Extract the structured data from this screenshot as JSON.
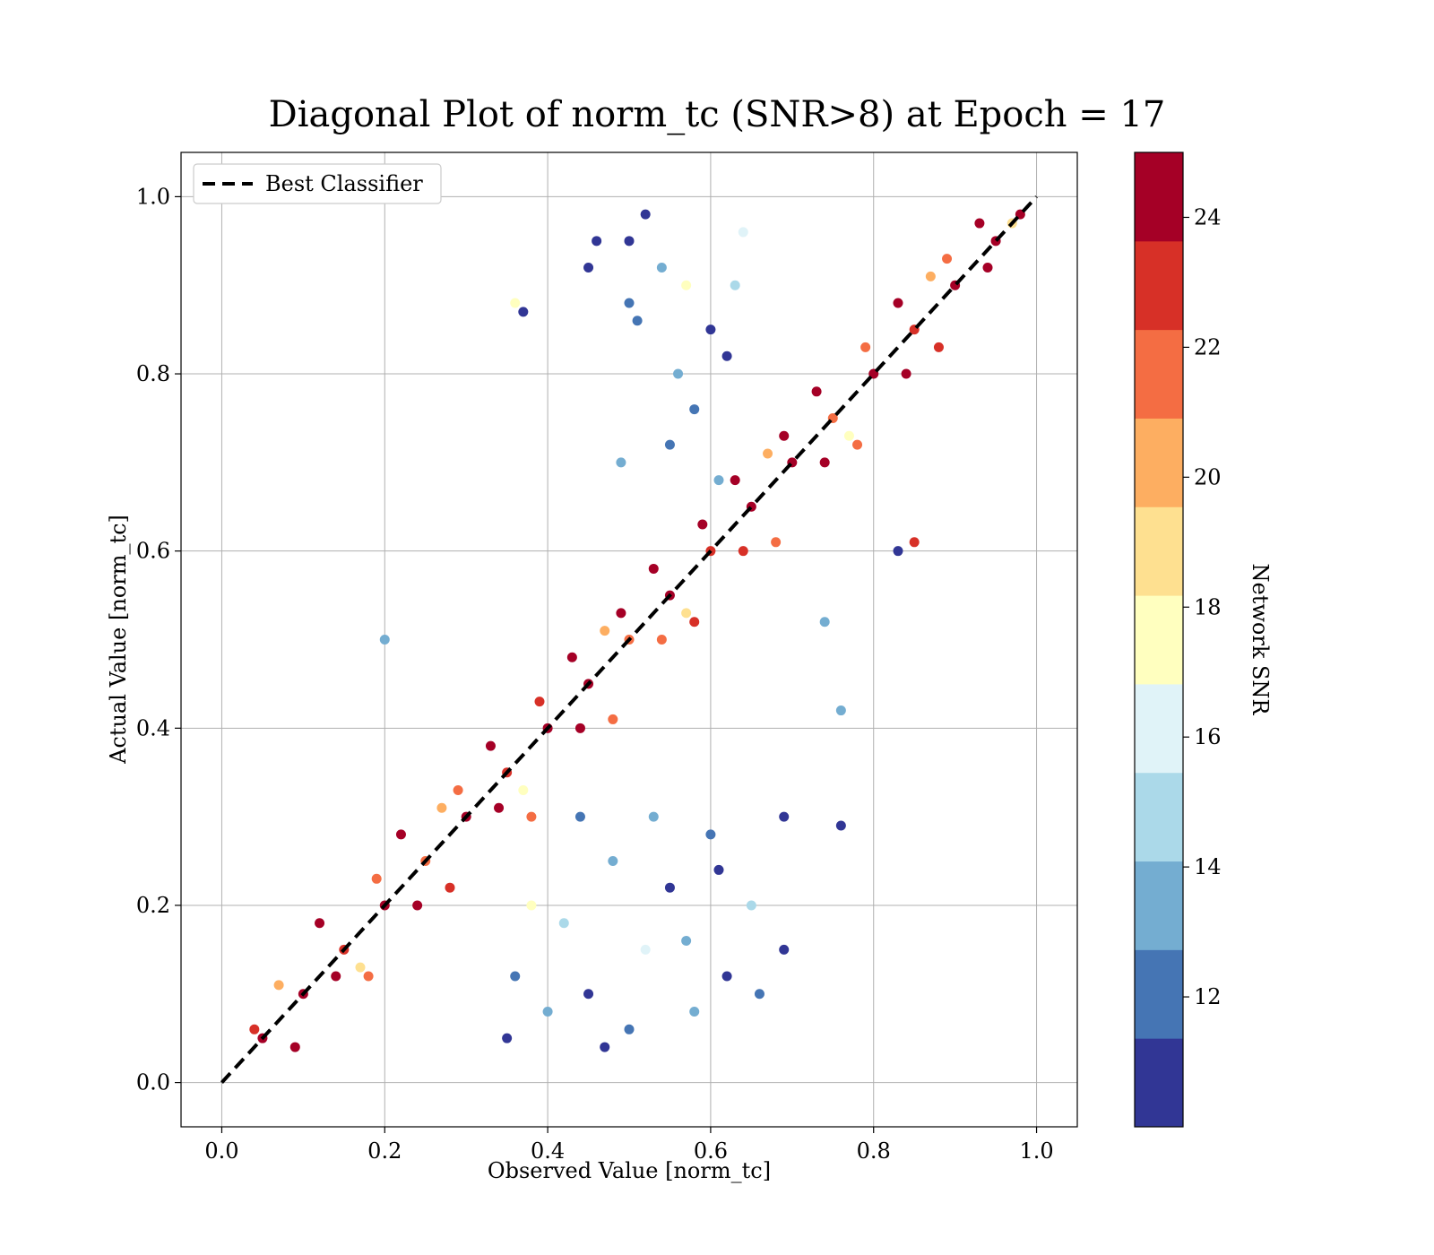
{
  "chart_data": {
    "type": "scatter",
    "title": "Diagonal Plot of norm_tc (SNR>8) at Epoch = 17",
    "xlabel": "Observed Value [norm_tc]",
    "ylabel": "Actual Value [norm_tc]",
    "xlim": [
      -0.05,
      1.05
    ],
    "ylim": [
      -0.05,
      1.05
    ],
    "xticks": [
      0.0,
      0.2,
      0.4,
      0.6,
      0.8,
      1.0
    ],
    "yticks": [
      0.0,
      0.2,
      0.4,
      0.6,
      0.8,
      1.0
    ],
    "xtick_labels": [
      "0.0",
      "0.2",
      "0.4",
      "0.6",
      "0.8",
      "1.0"
    ],
    "ytick_labels": [
      "0.0",
      "0.2",
      "0.4",
      "0.6",
      "0.8",
      "1.0"
    ],
    "grid": true,
    "legend": {
      "placement": "top-left",
      "entries": [
        {
          "label": "Best Classifier",
          "style": "dashed",
          "color": "#000000"
        }
      ]
    },
    "reference_line": {
      "name": "Best Classifier",
      "x": [
        0.0,
        1.0
      ],
      "y": [
        0.0,
        1.0
      ]
    },
    "colorbar": {
      "label": "Network SNR",
      "range": [
        10,
        25
      ],
      "ticks": [
        12,
        14,
        16,
        18,
        20,
        22,
        24
      ],
      "tick_labels": [
        "12",
        "14",
        "16",
        "18",
        "20",
        "22",
        "24"
      ],
      "colors": [
        "#313695",
        "#4575b4",
        "#74add1",
        "#abd9e9",
        "#e0f3f8",
        "#ffffbf",
        "#fee090",
        "#fdae61",
        "#f46d43",
        "#d73027",
        "#a50026"
      ]
    },
    "points": {
      "x": [
        0.05,
        0.1,
        0.15,
        0.2,
        0.25,
        0.3,
        0.35,
        0.4,
        0.45,
        0.5,
        0.55,
        0.6,
        0.65,
        0.7,
        0.75,
        0.8,
        0.85,
        0.9,
        0.95,
        0.98,
        0.12,
        0.18,
        0.22,
        0.28,
        0.33,
        0.38,
        0.43,
        0.48,
        0.53,
        0.58,
        0.63,
        0.68,
        0.73,
        0.78,
        0.83,
        0.88,
        0.93,
        0.04,
        0.09,
        0.14,
        0.19,
        0.24,
        0.29,
        0.34,
        0.39,
        0.44,
        0.49,
        0.54,
        0.59,
        0.64,
        0.69,
        0.74,
        0.79,
        0.84,
        0.89,
        0.94,
        0.07,
        0.17,
        0.27,
        0.37,
        0.47,
        0.57,
        0.67,
        0.77,
        0.87,
        0.97,
        0.35,
        0.36,
        0.4,
        0.42,
        0.45,
        0.48,
        0.5,
        0.52,
        0.55,
        0.58,
        0.6,
        0.62,
        0.65,
        0.38,
        0.44,
        0.47,
        0.53,
        0.57,
        0.61,
        0.66,
        0.46,
        0.5,
        0.54,
        0.56,
        0.6,
        0.63,
        0.55,
        0.52,
        0.49,
        0.58,
        0.62,
        0.64,
        0.51,
        0.57,
        0.61,
        0.2,
        0.36,
        0.37,
        0.45,
        0.5,
        0.74,
        0.76,
        0.76,
        0.83,
        0.85,
        0.69,
        0.69
      ],
      "y": [
        0.05,
        0.1,
        0.15,
        0.2,
        0.25,
        0.3,
        0.35,
        0.4,
        0.45,
        0.5,
        0.55,
        0.6,
        0.65,
        0.7,
        0.75,
        0.8,
        0.85,
        0.9,
        0.95,
        0.98,
        0.18,
        0.12,
        0.28,
        0.22,
        0.38,
        0.3,
        0.48,
        0.41,
        0.58,
        0.52,
        0.68,
        0.61,
        0.78,
        0.72,
        0.88,
        0.83,
        0.97,
        0.06,
        0.04,
        0.12,
        0.23,
        0.2,
        0.33,
        0.31,
        0.43,
        0.4,
        0.53,
        0.5,
        0.63,
        0.6,
        0.73,
        0.7,
        0.83,
        0.8,
        0.93,
        0.92,
        0.11,
        0.13,
        0.31,
        0.33,
        0.51,
        0.53,
        0.71,
        0.73,
        0.91,
        0.97,
        0.05,
        0.12,
        0.08,
        0.18,
        0.1,
        0.25,
        0.06,
        0.15,
        0.22,
        0.08,
        0.28,
        0.12,
        0.2,
        0.2,
        0.3,
        0.04,
        0.3,
        0.16,
        0.24,
        0.1,
        0.95,
        0.88,
        0.92,
        0.8,
        0.85,
        0.9,
        0.72,
        0.98,
        0.7,
        0.76,
        0.82,
        0.96,
        0.86,
        0.9,
        0.68,
        0.5,
        0.88,
        0.87,
        0.92,
        0.95,
        0.52,
        0.42,
        0.29,
        0.6,
        0.61,
        0.15,
        0.3
      ],
      "snr": [
        24,
        24,
        23,
        24,
        22,
        24,
        23,
        24,
        24,
        22,
        24,
        23,
        24,
        24,
        22,
        24,
        23,
        24,
        24,
        24,
        24,
        22,
        24,
        23,
        24,
        21,
        24,
        22,
        24,
        23,
        24,
        21,
        24,
        22,
        24,
        23,
        24,
        23,
        24,
        24,
        21,
        24,
        22,
        24,
        23,
        24,
        24,
        22,
        24,
        23,
        24,
        24,
        21,
        24,
        22,
        24,
        20,
        19,
        20,
        18,
        20,
        19,
        20,
        18,
        20,
        19,
        11,
        12,
        13,
        15,
        11,
        14,
        12,
        16,
        11,
        13,
        12,
        11,
        15,
        17,
        12,
        11,
        14,
        13,
        11,
        12,
        11,
        12,
        13,
        14,
        11,
        15,
        12,
        11,
        13,
        12,
        11,
        16,
        12,
        17,
        13,
        14,
        18,
        11,
        11,
        11,
        13,
        13,
        11,
        11,
        23,
        11,
        11
      ]
    }
  }
}
